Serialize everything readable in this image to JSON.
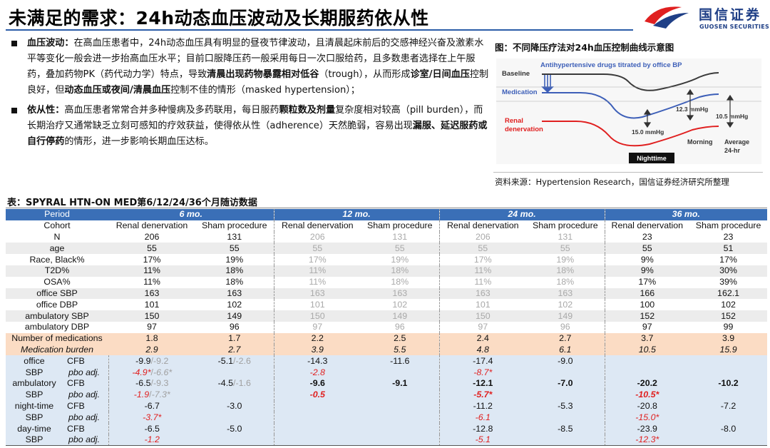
{
  "header": {
    "title": "未满足的需求：24h动态血压波动及长期服药依从性",
    "logo_cn": "国信证券",
    "logo_en": "GUOSEN SECURITIES"
  },
  "bullets": [
    {
      "runs": [
        {
          "t": "血压波动：",
          "b": true
        },
        {
          "t": "在高血压患者中，24h动态血压具有明显的昼夜节律波动，且清晨起床前后的交感神经兴奋及激素水平等变化一般会进一步抬高血压水平；目前口服降压药一般采用每日一次口服给药，且多数患者选择在上午服药，叠加药物PK（药代动力学）特点，导致",
          "b": false
        },
        {
          "t": "清晨出现药物暴露相对低谷",
          "b": true
        },
        {
          "t": "（trough），从而形成",
          "b": false
        },
        {
          "t": "诊室/日间血压",
          "b": true
        },
        {
          "t": "控制良好，但",
          "b": false
        },
        {
          "t": "动态血压或夜间/清晨血压",
          "b": true
        },
        {
          "t": "控制不佳的情形（masked hypertension）；",
          "b": false
        }
      ]
    },
    {
      "runs": [
        {
          "t": "依从性：",
          "b": true
        },
        {
          "t": "高血压患者常常合并多种慢病及多药联用，每日服药",
          "b": false
        },
        {
          "t": "颗粒数及剂量",
          "b": true
        },
        {
          "t": "复杂度相对较高（pill burden），而长期治疗又通常缺乏立刻可感知的疗效获益，使得依从性（adherence）天然脆弱，容易出现",
          "b": false
        },
        {
          "t": "漏服、延迟服药或自行停药",
          "b": true
        },
        {
          "t": "的情形，进一步影响长期血压达标。",
          "b": false
        }
      ]
    }
  ],
  "figure": {
    "title": "图：不同降压疗法对24h血压控制曲线示意图",
    "heading": "Antihypertensive drugs titrated by office BP",
    "baseline": "Baseline",
    "medication": "Medication",
    "renal_1": "Renal",
    "renal_2": "denervation",
    "mmhg_15": "15.0 mmHg",
    "mmhg_123": "12.3 mmHg",
    "mmhg_105": "10.5 mmHg",
    "nighttime": "Nighttime",
    "morning": "Morning",
    "average": "Average",
    "h24": "24-hr",
    "source": "资料来源：Hypertension Research，国信证券经济研究所整理",
    "colors": {
      "baseline": "#3a3a3a",
      "medication": "#3d5fb8",
      "renal": "#e02020"
    }
  },
  "table": {
    "title": "表：SPYRAL HTN-ON MED第6/12/24/36个月随访数据",
    "period_label": "Period",
    "periods": [
      "6 mo.",
      "12 mo.",
      "24 mo.",
      "36 mo."
    ],
    "cohort_label": "Cohort",
    "cohort_rd": "Renal denervation",
    "cohort_sham": "Sham procedure",
    "baseline_rows": [
      {
        "label": "N",
        "v": [
          "206",
          "131",
          "206",
          "131",
          "206",
          "131",
          "23",
          "23"
        ]
      },
      {
        "label": "age",
        "v": [
          "55",
          "55",
          "55",
          "55",
          "55",
          "55",
          "55",
          "51"
        ]
      },
      {
        "label": "Race, Black%",
        "v": [
          "17%",
          "19%",
          "17%",
          "19%",
          "17%",
          "19%",
          "9%",
          "17%"
        ]
      },
      {
        "label": "T2D%",
        "v": [
          "11%",
          "18%",
          "11%",
          "18%",
          "11%",
          "18%",
          "9%",
          "30%"
        ]
      },
      {
        "label": "OSA%",
        "v": [
          "11%",
          "18%",
          "11%",
          "18%",
          "11%",
          "18%",
          "17%",
          "39%"
        ]
      },
      {
        "label": "office SBP",
        "v": [
          "163",
          "163",
          "163",
          "163",
          "163",
          "163",
          "166",
          "162.1"
        ]
      },
      {
        "label": "office DBP",
        "v": [
          "101",
          "102",
          "101",
          "102",
          "101",
          "102",
          "100",
          "102"
        ]
      },
      {
        "label": "ambulatory SBP",
        "v": [
          "150",
          "149",
          "150",
          "149",
          "150",
          "149",
          "152",
          "152"
        ]
      },
      {
        "label": "ambulatory DBP",
        "v": [
          "97",
          "96",
          "97",
          "96",
          "97",
          "96",
          "97",
          "99"
        ]
      }
    ],
    "med_rows": [
      {
        "label": "Number of medications",
        "v": [
          "1.8",
          "1.7",
          "2.2",
          "2.5",
          "2.4",
          "2.7",
          "3.7",
          "3.9"
        ]
      },
      {
        "label": "Medication burden",
        "v": [
          "2.9",
          "2.7",
          "3.9",
          "5.5",
          "4.8",
          "6.1",
          "10.5",
          "15.9"
        ]
      }
    ],
    "cfb": "CFB",
    "pbo": "pbo adj.",
    "sbp": "SBP",
    "groups": {
      "office": "office",
      "ambulatory": "ambulatory",
      "night": "night-time",
      "day": "day-time"
    },
    "office": {
      "cfb_rd_a": "-9.9",
      "cfb_rd_sep": "/",
      "cfb_rd_b": "-9.2",
      "cfb_sh_a": "-5.1",
      "cfb_sh_sep": "/",
      "cfb_sh_b": "-2.6",
      "pbo6_a": "-4.9*",
      "pbo6_sep": "/",
      "pbo6_b": "-6.6*",
      "cfb12_rd": "-14.3",
      "cfb12_sh": "-11.6",
      "pbo12": "-2.8",
      "cfb24_rd": "-17.4",
      "cfb24_sh": "-9.0",
      "pbo24": "-8.7*"
    },
    "ambulatory": {
      "cfb_rd_a": "-6.5",
      "cfb_rd_sep": "/",
      "cfb_rd_b": "-9.3",
      "cfb_sh_a": "-4.5",
      "cfb_sh_sep": "/",
      "cfb_sh_b": "-1.6",
      "pbo6_a": "-1.9",
      "pbo6_sep": "/",
      "pbo6_b": "-7.3*",
      "cfb12_rd": "-9.6",
      "cfb12_sh": "-9.1",
      "pbo12": "-0.5",
      "cfb24_rd": "-12.1",
      "cfb24_sh": "-7.0",
      "pbo24": "-5.7*",
      "cfb36_rd": "-20.2",
      "cfb36_sh": "-10.2",
      "pbo36": "-10.5*"
    },
    "night": {
      "cfb6_rd": "-6.7",
      "cfb6_sh": "-3.0",
      "pbo6": "-3.7*",
      "cfb24_rd": "-11.2",
      "cfb24_sh": "-5.3",
      "pbo24": "-6.1",
      "cfb36_rd": "-20.8",
      "cfb36_sh": "-7.2",
      "pbo36": "-15.0*"
    },
    "day": {
      "cfb6_rd": "-6.5",
      "cfb6_sh": "-5.0",
      "pbo6": "-1.2",
      "cfb24_rd": "-12.8",
      "cfb24_sh": "-8.5",
      "pbo24": "-5.1",
      "cfb36_rd": "-23.9",
      "cfb36_sh": "-8.0",
      "pbo36": "-12.3*"
    }
  }
}
